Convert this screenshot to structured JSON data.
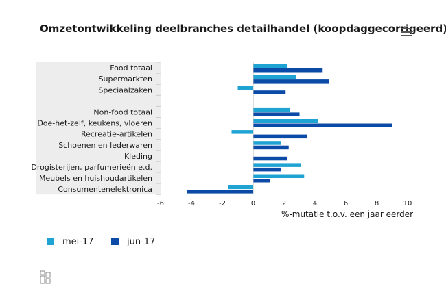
{
  "title": "Omzetontwikkeling deelbranches detailhandel (koopdaggecorrigeerd)",
  "menu_icon": "hamburger-menu-icon",
  "logo_icon": "cbs-logo-icon",
  "colors": {
    "mei": "#1fa3d3",
    "jun": "#0b4aa6",
    "label_bg": "#ededed"
  },
  "chart_data": {
    "type": "bar",
    "orientation": "horizontal",
    "title": "Omzetontwikkeling deelbranches detailhandel (koopdaggecorrigeerd)",
    "xlabel": "%-mutatie t.o.v. een jaar eerder",
    "ylabel": "",
    "xlim": [
      -6,
      10
    ],
    "xticks": [
      -6,
      -4,
      -2,
      0,
      2,
      4,
      6,
      8,
      10
    ],
    "grid": false,
    "legend_position": "bottom-left",
    "categories": [
      "Food totaal",
      "Supermarkten",
      "Speciaalzaken",
      "",
      "Non-food totaal",
      "Doe-het-zelf, keukens, vloeren",
      "Recreatie-artikelen",
      "Schoenen en lederwaren",
      "Kleding",
      "Drogisterijen, parfumerieën e.d.",
      "Meubels en huishoudartikelen",
      "Consumentenelektronica"
    ],
    "series": [
      {
        "name": "mei-17",
        "color": "#1fa3d3",
        "values": [
          2.2,
          2.8,
          -1.0,
          null,
          2.4,
          4.2,
          -1.4,
          1.8,
          null,
          3.1,
          3.3,
          -1.6
        ]
      },
      {
        "name": "jun-17",
        "color": "#0b4aa6",
        "values": [
          4.5,
          4.9,
          2.1,
          null,
          3.0,
          9.0,
          3.5,
          2.3,
          2.2,
          1.8,
          1.1,
          -4.3
        ]
      }
    ]
  }
}
